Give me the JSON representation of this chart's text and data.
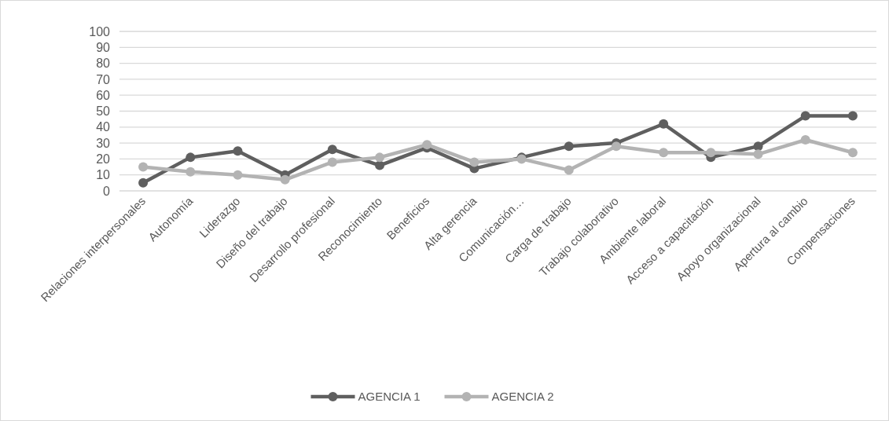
{
  "chart_data": {
    "type": "line",
    "categories": [
      "Relaciones interpersonales",
      "Autonomía",
      "Liderazgo",
      "Diseño del trabajo",
      "Desarrollo profesional",
      "Reconocimiento",
      "Beneficios",
      "Alta gerencia",
      "Comunicación…",
      "Carga de trabajo",
      "Trabajo colaborativo",
      "Ambiente laboral",
      "Acceso a capacitación",
      "Apoyo organizacional",
      "Apertura al cambio",
      "Compensaciones"
    ],
    "series": [
      {
        "name": "AGENCIA 1",
        "color": "#5f5f5f",
        "values": [
          5,
          21,
          25,
          10,
          26,
          16,
          27,
          14,
          21,
          28,
          30,
          42,
          21,
          28,
          47,
          47
        ]
      },
      {
        "name": "AGENCIA 2",
        "color": "#b3b3b3",
        "values": [
          15,
          12,
          10,
          7,
          18,
          21,
          29,
          18,
          20,
          13,
          28,
          24,
          24,
          23,
          32,
          24
        ]
      }
    ],
    "ylim": [
      0,
      100
    ],
    "yticks": [
      0,
      10,
      20,
      30,
      40,
      50,
      60,
      70,
      80,
      90,
      100
    ],
    "grid": "y",
    "legend": "bottom",
    "marker": "circle",
    "line_style": "solid"
  }
}
